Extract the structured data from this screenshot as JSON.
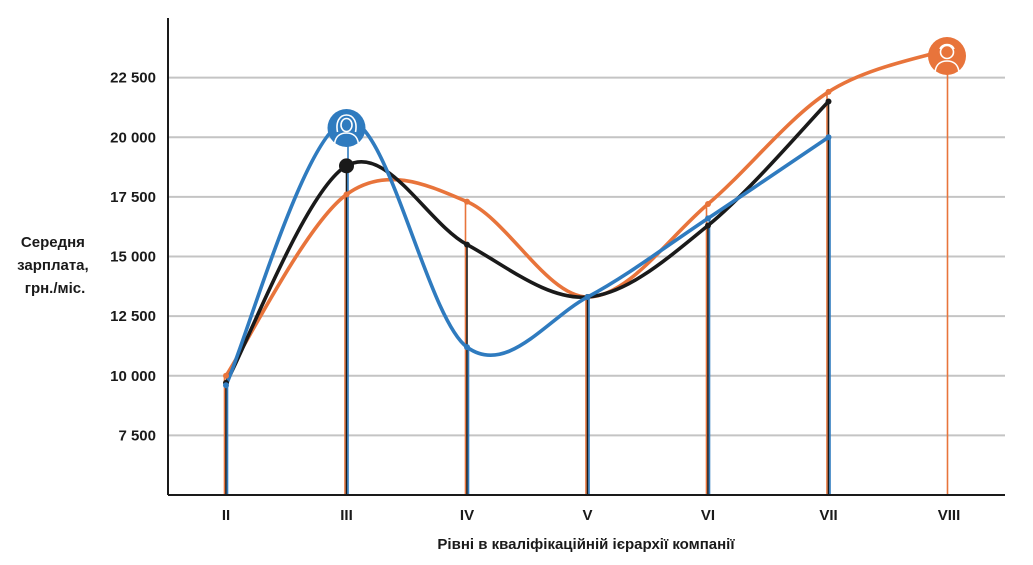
{
  "chart_data": {
    "type": "line",
    "xlabel": "Рівні в кваліфікаційній ієрархії компанії",
    "ylabel_lines": [
      "Середня",
      "зарплата,",
      "грн./міс."
    ],
    "categories": [
      "II",
      "III",
      "IV",
      "V",
      "VI",
      "VII",
      "VIII"
    ],
    "ylim": [
      5000,
      25000
    ],
    "yticks": [
      7500,
      10000,
      12500,
      15000,
      17500,
      20000,
      22500
    ],
    "ytick_labels": [
      "7 500",
      "10 000",
      "12 500",
      "15 000",
      "17 500",
      "20 000",
      "22 500"
    ],
    "grid": true,
    "series": [
      {
        "key": "orange",
        "color": "#e8743b",
        "values": [
          10000,
          17600,
          17300,
          13300,
          17200,
          21900,
          23700
        ],
        "icon": "male-avatar-icon",
        "icon_at": 6
      },
      {
        "key": "black",
        "color": "#1a1a1a",
        "values": [
          9700,
          18800,
          15500,
          13300,
          16300,
          21500,
          null
        ],
        "marker_at": 1
      },
      {
        "key": "blue",
        "color": "#2f7bbf",
        "values": [
          9600,
          20700,
          11200,
          13300,
          16600,
          20000,
          null
        ],
        "icon": "female-avatar-icon",
        "icon_at": 1
      }
    ]
  }
}
